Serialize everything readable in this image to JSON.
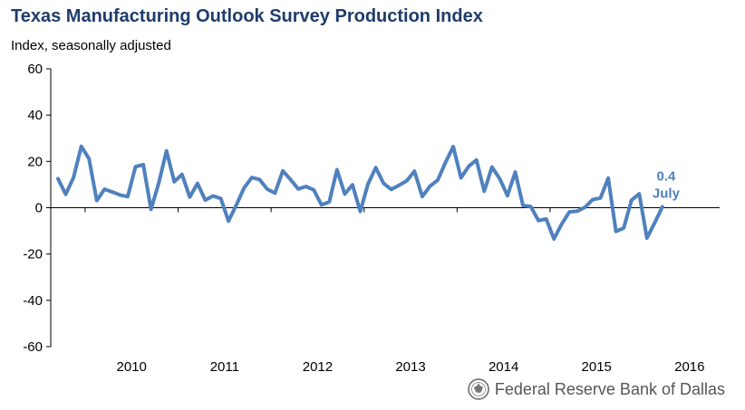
{
  "header": {
    "title": "Texas Manufacturing Outlook Survey Production Index",
    "subtitle": "Index, seasonally adjusted"
  },
  "annotation": {
    "value": "0.4",
    "month": "July"
  },
  "footer": {
    "source": "Federal Reserve Bank of Dallas",
    "logo_icon": "federal-reserve-seal-icon"
  },
  "colors": {
    "series": "#4f81bd",
    "annotation": "#4f81bd",
    "title": "#1f3c6b",
    "axis": "#000000"
  },
  "chart_data": {
    "type": "line",
    "title": "Texas Manufacturing Outlook Survey Production Index",
    "ylabel": "Index, seasonally adjusted",
    "xlabel": "",
    "ylim": [
      -60,
      60
    ],
    "y_ticks": [
      60,
      40,
      20,
      0,
      -20,
      -40,
      -60
    ],
    "x_tick_labels": [
      "2010",
      "2011",
      "2012",
      "2013",
      "2014",
      "2015",
      "2016"
    ],
    "grid": false,
    "legend": "none",
    "x_start": "2009-09",
    "x_end": "2016-07",
    "series": [
      {
        "values": [
          12.5,
          5.8,
          13.0,
          26.5,
          21.2,
          3.1,
          8.0,
          6.8,
          5.5,
          4.8,
          17.7,
          18.6,
          -0.7,
          10.7,
          24.6,
          11.2,
          14.4,
          4.6,
          10.5,
          3.3,
          5.1,
          4.0,
          -5.8,
          1.0,
          8.5,
          13.0,
          12.2,
          8.0,
          6.3,
          15.9,
          12.2,
          8.1,
          9.2,
          7.7,
          1.2,
          2.5,
          16.4,
          5.9,
          9.9,
          -1.6,
          10.2,
          17.3,
          10.6,
          7.9,
          9.7,
          11.6,
          15.8,
          4.8,
          9.3,
          11.9,
          19.5,
          26.4,
          12.9,
          17.9,
          20.6,
          7.1,
          17.6,
          12.5,
          5.2,
          15.4,
          1.0,
          0.5,
          -5.5,
          -4.9,
          -13.5,
          -7.0,
          -1.8,
          -1.5,
          0.2,
          3.5,
          4.2,
          12.8,
          -10.2,
          -8.8,
          3.2,
          6.0,
          -13.1,
          -6.5,
          0.4
        ]
      }
    ]
  }
}
